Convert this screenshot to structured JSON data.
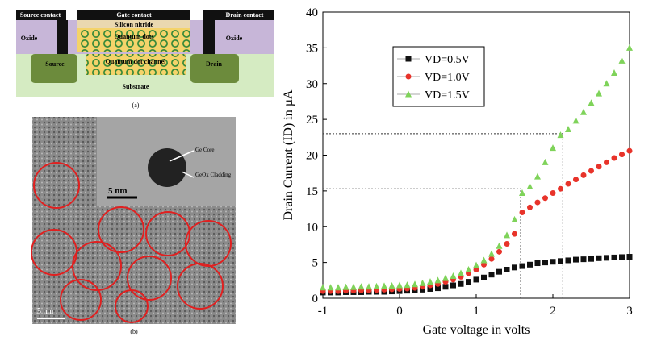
{
  "diagram": {
    "labels": {
      "source_contact": "Source contact",
      "gate_contact": "Gate contact",
      "drain_contact": "Drain contact",
      "silicon_nitride": "Silicon nitride",
      "quantum_dots": "Quantum dots",
      "oxide_left": "Oxide",
      "oxide_right": "Oxide",
      "channel": "Quantum dot channel",
      "source": "Source",
      "drain": "Drain",
      "substrate": "Substrate"
    },
    "caption": "(a)"
  },
  "micrograph": {
    "labels": {
      "core": "Ge Core",
      "cladding": "GeOx Cladding",
      "inset_scale": "5 nm",
      "scale": "5 nm"
    },
    "caption": "(b)"
  },
  "chart_data": {
    "type": "scatter",
    "xlabel": "Gate voltage in volts",
    "ylabel": "Drain Current (ID) in µA",
    "xlim": [
      -1,
      3
    ],
    "xticks": [
      -1,
      0,
      1,
      2,
      3
    ],
    "ylim": [
      0,
      40
    ],
    "yticks": [
      0,
      5,
      10,
      15,
      20,
      25,
      30,
      35,
      40
    ],
    "x": [
      -1,
      -0.9,
      -0.8,
      -0.7,
      -0.6,
      -0.5,
      -0.4,
      -0.3,
      -0.2,
      -0.1,
      0,
      0.1,
      0.2,
      0.3,
      0.4,
      0.5,
      0.6,
      0.7,
      0.8,
      0.9,
      1,
      1.1,
      1.2,
      1.3,
      1.4,
      1.5,
      1.6,
      1.7,
      1.8,
      1.9,
      2,
      2.1,
      2.2,
      2.3,
      2.4,
      2.5,
      2.6,
      2.7,
      2.8,
      2.9,
      3
    ],
    "series": [
      {
        "name": "VD=0.5V",
        "color": "#111111",
        "marker": "square",
        "values": [
          0.8,
          0.8,
          0.8,
          0.85,
          0.85,
          0.85,
          0.9,
          0.9,
          0.9,
          0.95,
          1.0,
          1.05,
          1.1,
          1.2,
          1.3,
          1.4,
          1.6,
          1.8,
          2.0,
          2.3,
          2.6,
          2.9,
          3.3,
          3.7,
          4.0,
          4.3,
          4.5,
          4.7,
          4.9,
          5.0,
          5.1,
          5.2,
          5.3,
          5.4,
          5.45,
          5.5,
          5.6,
          5.65,
          5.7,
          5.75,
          5.8
        ]
      },
      {
        "name": "VD=1.0V",
        "color": "#e8332a",
        "marker": "circle",
        "values": [
          1.0,
          1.0,
          1.0,
          1.05,
          1.05,
          1.1,
          1.1,
          1.15,
          1.2,
          1.25,
          1.3,
          1.35,
          1.45,
          1.6,
          1.8,
          2.0,
          2.3,
          2.6,
          3.0,
          3.5,
          4.0,
          4.7,
          5.5,
          6.5,
          7.6,
          9.0,
          12.0,
          12.7,
          13.4,
          14.0,
          14.7,
          15.3,
          16.0,
          16.6,
          17.2,
          17.8,
          18.4,
          19.0,
          19.6,
          20.1,
          20.6
        ]
      },
      {
        "name": "VD=1.5V",
        "color": "#7fd35a",
        "marker": "triangle",
        "values": [
          1.5,
          1.5,
          1.5,
          1.55,
          1.55,
          1.6,
          1.6,
          1.65,
          1.7,
          1.75,
          1.8,
          1.85,
          1.95,
          2.1,
          2.3,
          2.5,
          2.8,
          3.1,
          3.5,
          4.0,
          4.6,
          5.3,
          6.2,
          7.3,
          8.8,
          11.0,
          14.7,
          15.6,
          17.0,
          19.0,
          21.0,
          22.8,
          23.6,
          24.8,
          26.0,
          27.3,
          28.6,
          30.0,
          31.5,
          33.2,
          35.0
        ]
      }
    ],
    "reference_lines": [
      {
        "x": 1.58,
        "y": 15.3
      },
      {
        "x": 2.13,
        "y": 23
      }
    ],
    "legend": "upper left"
  }
}
